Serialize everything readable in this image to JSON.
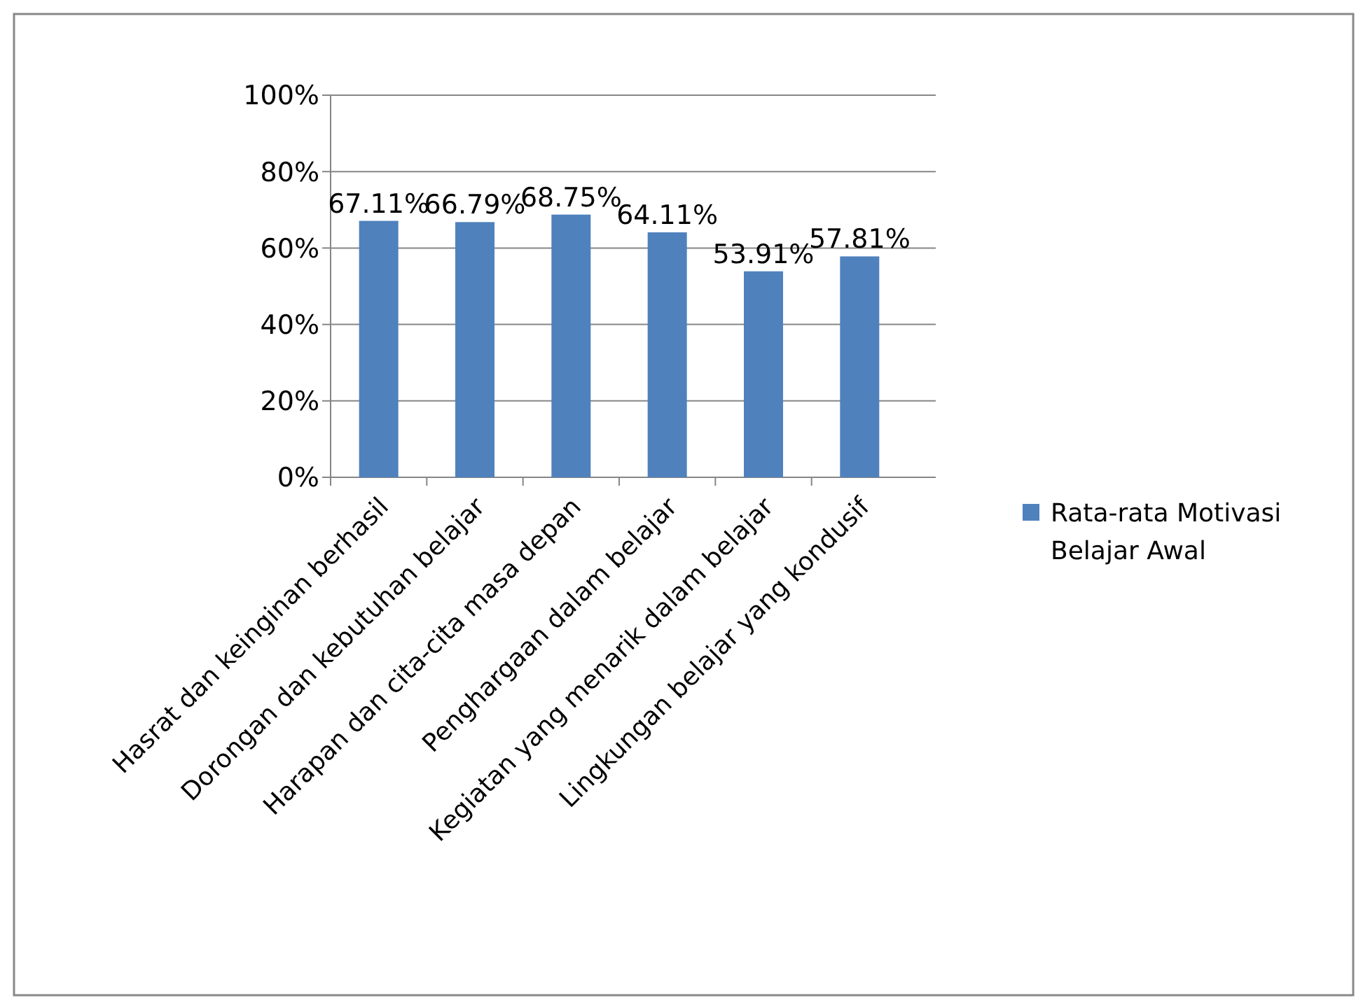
{
  "chart_data": {
    "type": "bar",
    "categories": [
      "Hasrat dan keinginan berhasil",
      "Dorongan dan kebutuhan belajar",
      "Harapan dan cita-cita masa depan",
      "Penghargaan dalam belajar",
      "Kegiatan yang menarik dalam belajar",
      "Lingkungan belajar yang kondusif"
    ],
    "series": [
      {
        "name": "Rata-rata Motivasi Belajar Awal",
        "color": "#4f81bd",
        "values": [
          67.11,
          66.79,
          68.75,
          64.11,
          53.91,
          57.81
        ],
        "value_labels": [
          "67.11%",
          "66.79%",
          "68.75%",
          "64.11%",
          "53.91%",
          "57.81%"
        ]
      }
    ],
    "ylim": [
      0,
      100
    ],
    "yticks": [
      {
        "value": 0,
        "label": "0%"
      },
      {
        "value": 20,
        "label": "20%"
      },
      {
        "value": 40,
        "label": "40%"
      },
      {
        "value": 60,
        "label": "60%"
      },
      {
        "value": 80,
        "label": "80%"
      },
      {
        "value": 100,
        "label": "100%"
      }
    ],
    "grid": "y",
    "legend": "right"
  }
}
